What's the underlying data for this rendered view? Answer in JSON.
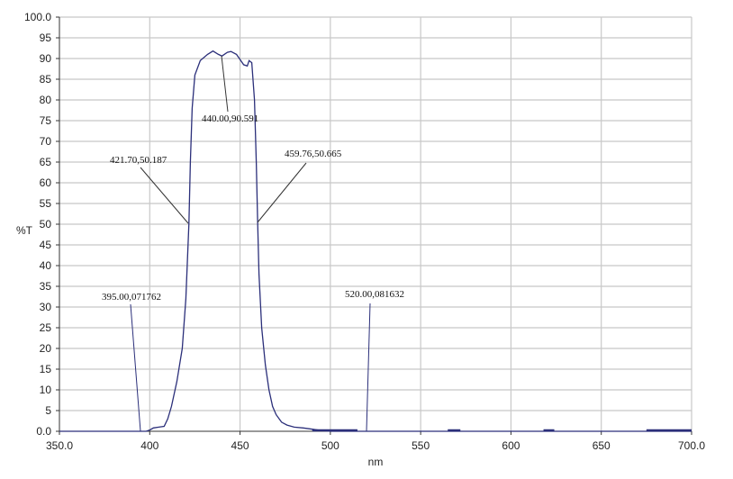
{
  "chart_data": {
    "type": "line",
    "xlabel": "nm",
    "ylabel": "%T",
    "xlim": [
      350,
      700
    ],
    "ylim": [
      0,
      100
    ],
    "grid": true,
    "x_ticks": [
      "350.0",
      "400",
      "450",
      "500",
      "550",
      "600",
      "650",
      "700.0"
    ],
    "y_ticks": [
      "0.0",
      "5",
      "10",
      "15",
      "20",
      "25",
      "30",
      "35",
      "40",
      "45",
      "50",
      "55",
      "60",
      "65",
      "70",
      "75",
      "80",
      "85",
      "90",
      "95",
      "100.0"
    ],
    "line_color": "#2b2f7a",
    "series": [
      {
        "x": [
          350,
          395,
          398,
          400,
          402,
          405,
          408,
          410,
          412,
          415,
          418,
          420,
          421.7,
          422.5,
          423.5,
          425,
          428,
          432,
          435,
          438,
          440,
          443,
          445,
          448,
          452,
          454,
          455,
          456.5,
          458,
          459,
          459.76,
          460.5,
          462,
          464,
          466,
          468,
          470,
          473,
          476,
          480,
          485,
          490,
          495,
          500,
          550,
          600,
          650,
          700
        ],
        "y": [
          0,
          0,
          0,
          0.3,
          0.8,
          1,
          1.2,
          3,
          6,
          12,
          20,
          32,
          50.2,
          65,
          78,
          86,
          89.5,
          91,
          91.8,
          91,
          90.6,
          91.5,
          91.7,
          91,
          88.5,
          88.2,
          89.5,
          89,
          80,
          65,
          50.7,
          38,
          25,
          16,
          10,
          6,
          4,
          2.2,
          1.5,
          1,
          0.8,
          0.5,
          0.2,
          0,
          0,
          0,
          0,
          0
        ]
      }
    ],
    "annotations": [
      {
        "text": "440.00,90.591",
        "x": 440,
        "y": 90.591
      },
      {
        "text": "421.70,50.187",
        "x": 421.7,
        "y": 50.187
      },
      {
        "text": "459.76,50.665",
        "x": 459.76,
        "y": 50.665
      },
      {
        "text": "395.00,071762",
        "x": 395,
        "y": 0.071762
      },
      {
        "text": "520.00,081632",
        "x": 520,
        "y": 0.081632
      }
    ]
  }
}
